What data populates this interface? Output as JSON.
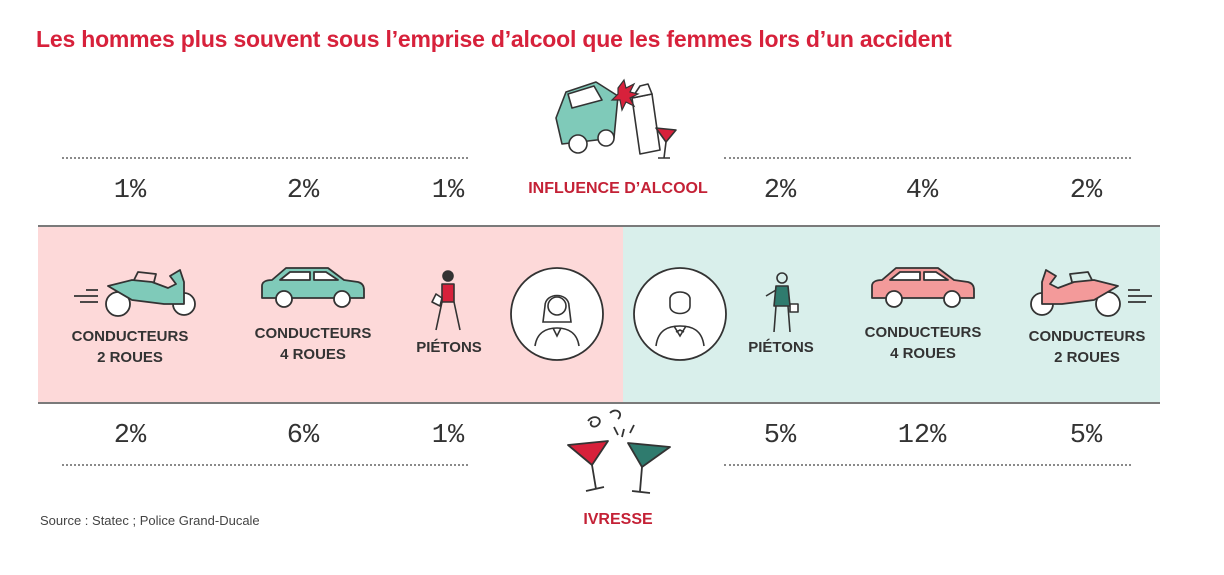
{
  "title": "Les hommes plus souvent sous l’emprise d’alcool que les femmes lors d’un accident",
  "categories": {
    "top": "INFLUENCE D’ALCOOL",
    "bottom": "IVRESSE"
  },
  "groups": {
    "women": [
      {
        "label_l1": "CONDUCTEURS",
        "label_l2": "2 ROUES",
        "icon": "motorcycle-icon"
      },
      {
        "label_l1": "CONDUCTEURS",
        "label_l2": "4 ROUES",
        "icon": "car-icon"
      },
      {
        "label_l1": "PIÉTONS",
        "label_l2": "",
        "icon": "pedestrian-woman-icon"
      }
    ],
    "men": [
      {
        "label_l1": "PIÉTONS",
        "label_l2": "",
        "icon": "pedestrian-man-icon"
      },
      {
        "label_l1": "CONDUCTEURS",
        "label_l2": "4 ROUES",
        "icon": "car-icon"
      },
      {
        "label_l1": "CONDUCTEURS",
        "label_l2": "2 ROUES",
        "icon": "motorcycle-icon"
      }
    ]
  },
  "chart_data": {
    "type": "table",
    "columns": [
      "CONDUCTEURS 2 ROUES",
      "CONDUCTEURS 4 ROUES",
      "PIÉTONS",
      "PIÉTONS",
      "CONDUCTEURS 4 ROUES",
      "CONDUCTEURS 2 ROUES"
    ],
    "rows": [
      {
        "name": "INFLUENCE D’ALCOOL",
        "values": [
          1,
          2,
          1,
          2,
          4,
          2
        ],
        "labels": [
          "1%",
          "2%",
          "1%",
          "2%",
          "4%",
          "2%"
        ]
      },
      {
        "name": "IVRESSE",
        "values": [
          2,
          6,
          1,
          5,
          12,
          5
        ],
        "labels": [
          "2%",
          "6%",
          "1%",
          "5%",
          "12%",
          "5%"
        ]
      }
    ],
    "unit": "%"
  },
  "source": "Source : Statec ; Police Grand-Ducale",
  "colors": {
    "accent": "#d7213b",
    "women_band": "#fdd9d9",
    "men_band": "#d9efeb",
    "pink_fill": "#f39a9a",
    "teal_fill": "#7fcab9",
    "text": "#333333"
  }
}
